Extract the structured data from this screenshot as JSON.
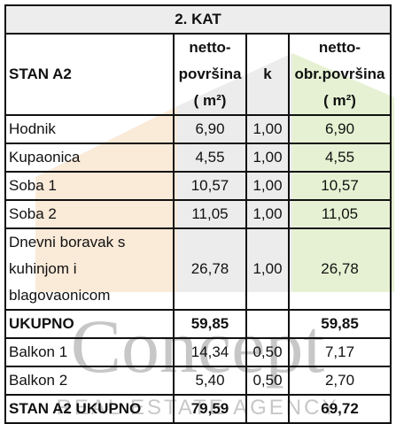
{
  "title": "2. KAT",
  "header": {
    "cells": [
      [
        "STAN A2"
      ],
      [
        "netto-",
        "površina",
        "( m²)"
      ],
      [
        "k"
      ],
      [
        "netto-",
        "obr.površina",
        "( m²)"
      ]
    ]
  },
  "table": {
    "rows": [
      [
        [
          "Hodnik"
        ],
        "6,90",
        "1,00",
        "6,90"
      ],
      [
        [
          "Kupaonica"
        ],
        "4,55",
        "1,00",
        "4,55"
      ],
      [
        [
          "Soba 1"
        ],
        "10,57",
        "1,00",
        "10,57"
      ],
      [
        [
          "Soba 2"
        ],
        "11,05",
        "1,00",
        "11,05"
      ],
      [
        [
          "Dnevni boravak s",
          "kuhinjom i",
          "blagovaonicom"
        ],
        "26,78",
        "1,00",
        "26,78"
      ],
      [
        [
          "UKUPNO"
        ],
        "59,85",
        null,
        "59,85"
      ],
      [
        [
          "Balkon 1"
        ],
        "14,34",
        "0,50",
        "7,17"
      ],
      [
        [
          "Balkon 2"
        ],
        "5,40",
        "0,50",
        "2,70"
      ],
      [
        [
          "STAN A2 UKUPNO"
        ],
        "79,59",
        null,
        "69,72"
      ]
    ]
  },
  "watermark": {
    "title": "Concept",
    "subtitle": "REAL ESTATE AGENCY"
  }
}
